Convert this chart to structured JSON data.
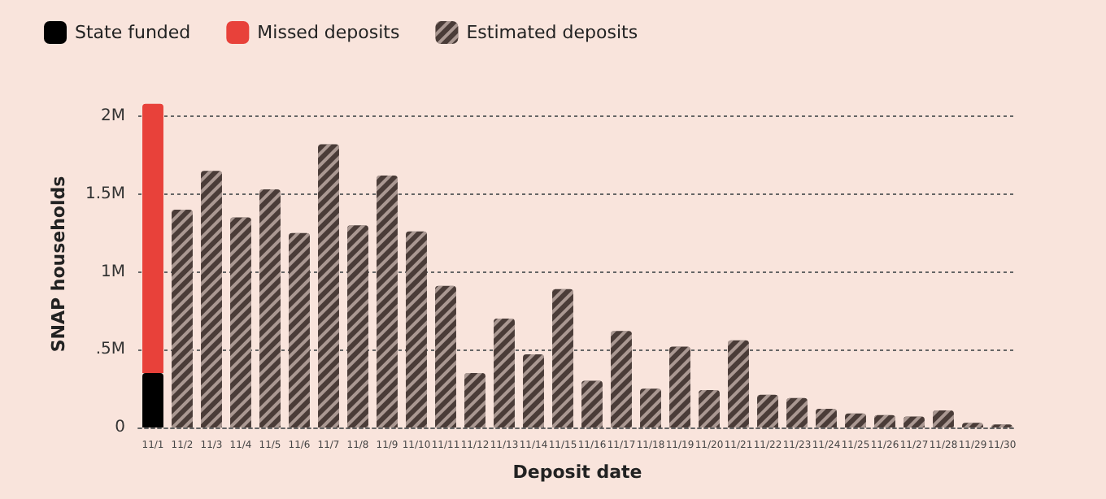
{
  "chart_data": {
    "type": "bar",
    "xlabel": "Deposit date",
    "ylabel": "SNAP households",
    "categories": [
      "11/1",
      "11/2",
      "11/3",
      "11/4",
      "11/5",
      "11/6",
      "11/7",
      "11/8",
      "11/9",
      "11/10",
      "11/11",
      "11/12",
      "11/13",
      "11/14",
      "11/15",
      "11/16",
      "11/17",
      "11/18",
      "11/19",
      "11/20",
      "11/21",
      "11/22",
      "11/23",
      "11/24",
      "11/25",
      "11/26",
      "11/27",
      "11/28",
      "11/29",
      "11/30"
    ],
    "stacked": true,
    "series": [
      {
        "name": "State funded",
        "color": "#000000",
        "values": [
          0.35,
          null,
          null,
          null,
          null,
          null,
          null,
          null,
          null,
          null,
          null,
          null,
          null,
          null,
          null,
          null,
          null,
          null,
          null,
          null,
          null,
          null,
          null,
          null,
          null,
          null,
          null,
          null,
          null,
          null
        ]
      },
      {
        "name": "Missed deposits",
        "color": "#e8413a",
        "values": [
          1.73,
          null,
          null,
          null,
          null,
          null,
          null,
          null,
          null,
          null,
          null,
          null,
          null,
          null,
          null,
          null,
          null,
          null,
          null,
          null,
          null,
          null,
          null,
          null,
          null,
          null,
          null,
          null,
          null,
          null
        ]
      },
      {
        "name": "Estimated deposits",
        "color": "#4a3c38",
        "values": [
          null,
          1.4,
          1.65,
          1.35,
          1.53,
          1.25,
          1.82,
          1.3,
          1.62,
          1.26,
          0.91,
          0.35,
          0.7,
          0.47,
          0.89,
          0.3,
          0.62,
          0.25,
          0.52,
          0.24,
          0.56,
          0.21,
          0.19,
          0.12,
          0.09,
          0.08,
          0.07,
          0.11,
          0.03,
          0.02
        ]
      }
    ],
    "ylim": [
      0,
      2.1
    ],
    "yticks": [
      {
        "value": 0,
        "label": "0"
      },
      {
        "value": 0.5,
        "label": ".5M"
      },
      {
        "value": 1,
        "label": "1M"
      },
      {
        "value": 1.5,
        "label": "1.5M"
      },
      {
        "value": 2,
        "label": "2M"
      }
    ],
    "grid": "y",
    "legend": "top left"
  }
}
